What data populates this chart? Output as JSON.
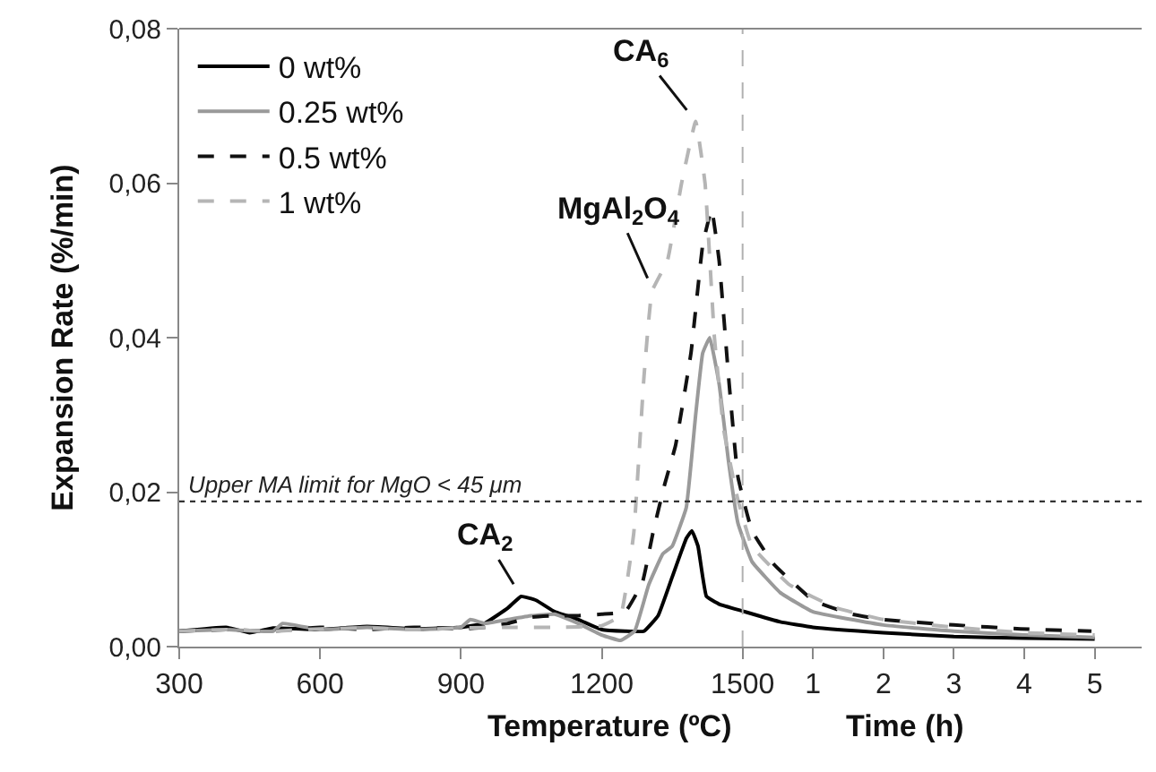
{
  "chart_data": {
    "type": "line",
    "xlabel": "Temperature (ºC)",
    "ylabel": "Expansion Rate (%/min)",
    "xlim": [
      300,
      2350
    ],
    "ylim": [
      0,
      0.08
    ],
    "xticks": [
      300,
      600,
      900,
      1200,
      1500
    ],
    "x2label": "Time (h)",
    "x2lim": [
      -8,
      5.667
    ],
    "x2ticks": [
      1,
      2,
      3,
      4,
      5
    ],
    "yticks": [
      {
        "value": 0,
        "label": "0,00"
      },
      {
        "value": 0.02,
        "label": "0,02"
      },
      {
        "value": 0.04,
        "label": "0,04"
      },
      {
        "value": 0.06,
        "label": "0,06"
      },
      {
        "value": 0.08,
        "label": "0,08"
      }
    ],
    "legend": "top left",
    "marker": "none",
    "series": [
      {
        "name": "0 wt%",
        "color": "#000000",
        "line_style": "solid",
        "x": [
          300,
          400,
          450,
          500,
          600,
          700,
          800,
          900,
          950,
          1000,
          1028,
          1060,
          1100,
          1150,
          1200,
          1250,
          1290,
          1320,
          1350,
          1380,
          1392,
          1405,
          1423,
          1450,
          1500,
          1580,
          1650,
          1800,
          1950,
          2100,
          2250
        ],
        "values": [
          0.002,
          0.0025,
          0.0018,
          0.0024,
          0.0022,
          0.0026,
          0.0023,
          0.0025,
          0.003,
          0.005,
          0.0065,
          0.006,
          0.0045,
          0.0035,
          0.0022,
          0.002,
          0.002,
          0.004,
          0.009,
          0.014,
          0.015,
          0.013,
          0.0065,
          0.0055,
          0.0046,
          0.0032,
          0.0025,
          0.0018,
          0.0013,
          0.0011,
          0.001
        ]
      },
      {
        "name": "0.25 wt%",
        "color": "#9a9a9a",
        "line_style": "solid",
        "x": [
          300,
          400,
          500,
          520,
          600,
          700,
          800,
          900,
          920,
          950,
          1000,
          1050,
          1100,
          1150,
          1200,
          1240,
          1270,
          1300,
          1330,
          1350,
          1380,
          1400,
          1415,
          1430,
          1450,
          1470,
          1490,
          1520,
          1580,
          1650,
          1800,
          1950,
          2100,
          2250
        ],
        "values": [
          0.002,
          0.0022,
          0.002,
          0.003,
          0.0022,
          0.0025,
          0.0022,
          0.0025,
          0.0035,
          0.003,
          0.0035,
          0.004,
          0.0042,
          0.003,
          0.0015,
          0.0008,
          0.002,
          0.008,
          0.012,
          0.013,
          0.018,
          0.03,
          0.038,
          0.04,
          0.034,
          0.024,
          0.016,
          0.011,
          0.007,
          0.0045,
          0.0028,
          0.002,
          0.0015,
          0.0012
        ]
      },
      {
        "name": "0.5 wt%",
        "color": "#111111",
        "line_style": "dashed",
        "x": [
          300,
          400,
          500,
          600,
          700,
          800,
          900,
          950,
          1000,
          1050,
          1100,
          1150,
          1200,
          1250,
          1287,
          1310,
          1334,
          1357,
          1390,
          1415,
          1434,
          1450,
          1470,
          1490,
          1520,
          1566,
          1650,
          1732,
          1800,
          1950,
          2092,
          2243
        ],
        "values": [
          0.002,
          0.0022,
          0.002,
          0.0025,
          0.0022,
          0.0025,
          0.0023,
          0.0025,
          0.003,
          0.0038,
          0.004,
          0.004,
          0.0042,
          0.0045,
          0.0084,
          0.015,
          0.021,
          0.026,
          0.038,
          0.052,
          0.0566,
          0.05,
          0.035,
          0.022,
          0.015,
          0.0107,
          0.006,
          0.0042,
          0.0035,
          0.0028,
          0.0023,
          0.002
        ]
      },
      {
        "name": "1 wt%",
        "color": "#b5b5b5",
        "line_style": "dashed",
        "x": [
          300,
          400,
          500,
          600,
          700,
          800,
          900,
          1000,
          1100,
          1200,
          1240,
          1268,
          1290,
          1307,
          1340,
          1370,
          1400,
          1420,
          1440,
          1460,
          1490,
          1520,
          1600,
          1700,
          1800,
          1950,
          2100,
          2250
        ],
        "values": [
          0.002,
          0.0022,
          0.002,
          0.0023,
          0.0024,
          0.0022,
          0.0024,
          0.0025,
          0.0025,
          0.0027,
          0.004,
          0.0146,
          0.035,
          0.046,
          0.05,
          0.06,
          0.068,
          0.06,
          0.04,
          0.028,
          0.019,
          0.013,
          0.008,
          0.005,
          0.0035,
          0.0025,
          0.0018,
          0.0015
        ]
      }
    ],
    "ref_lines": [
      {
        "axis": "y",
        "value": 0.0188,
        "label": "Upper MA limit for MgO < 45 μm",
        "color": "#333333",
        "line_style": "dotted"
      },
      {
        "axis": "x",
        "value": 1500,
        "color": "#b0b0b0",
        "line_style": "dashed"
      }
    ],
    "annotations": [
      {
        "text": "CA$_{6}$",
        "x": 1400,
        "y": 0.068
      },
      {
        "text": "MgAl$_{2}$O$_{4}$",
        "x": 1310,
        "y": 0.046
      },
      {
        "text": "CA$_{2}$",
        "x": 1028,
        "y": 0.0065
      }
    ]
  }
}
